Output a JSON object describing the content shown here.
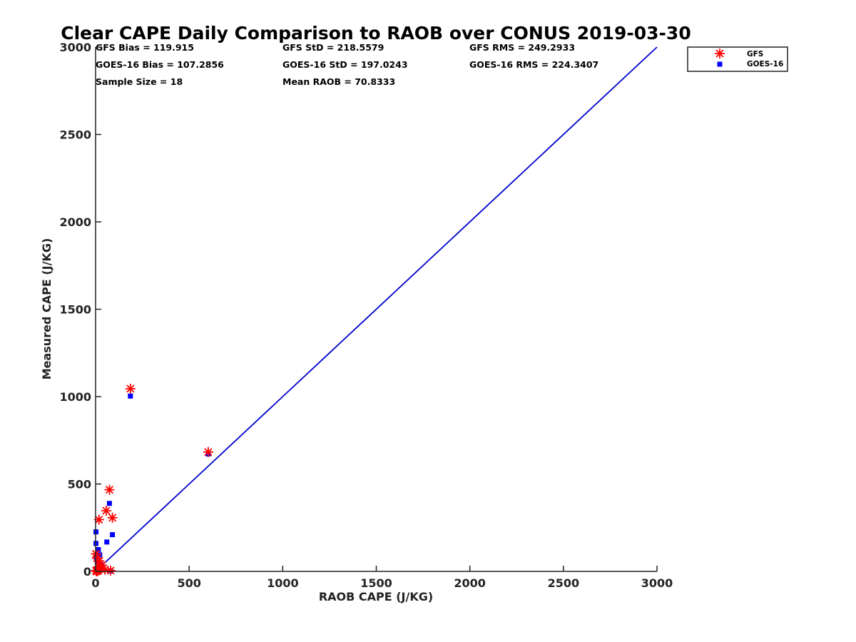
{
  "chart_data": {
    "type": "scatter",
    "title": "Clear CAPE Daily Comparison to RAOB over CONUS 2019-03-30",
    "xlabel": "RAOB CAPE (J/KG)",
    "ylabel": "Measured CAPE (J/KG)",
    "xlim": [
      0,
      3000
    ],
    "ylim": [
      0,
      3000
    ],
    "xticks": [
      "0",
      "500",
      "1000",
      "1500",
      "2000",
      "2500",
      "3000"
    ],
    "yticks": [
      "0",
      "500",
      "1000",
      "1500",
      "2000",
      "2500",
      "3000"
    ],
    "grid": false,
    "legend_position": "outside-top-right",
    "stats": [
      [
        "GFS Bias = 119.915",
        "GFS StD = 218.5579",
        "GFS RMS = 249.2933"
      ],
      [
        "GOES-16 Bias = 107.2856",
        "GOES-16 StD = 197.0243",
        "GOES-16 RMS = 224.3407"
      ],
      [
        "Sample Size = 18",
        "Mean RAOB = 70.8333"
      ]
    ],
    "reference_line": {
      "x": [
        0,
        3000
      ],
      "y": [
        0,
        3000
      ],
      "color": "#0000cc"
    },
    "series": [
      {
        "name": "GFS",
        "marker": "asterisk",
        "color": "#ff0000",
        "x": [
          186,
          602,
          74,
          57,
          90,
          18,
          2,
          8,
          20,
          35,
          15,
          28,
          50,
          80,
          3,
          12,
          10,
          5
        ],
        "y": [
          1045,
          683,
          467,
          347,
          307,
          296,
          100,
          75,
          60,
          35,
          25,
          15,
          10,
          5,
          5,
          3,
          2,
          0
        ]
      },
      {
        "name": "GOES-16",
        "marker": "square",
        "color": "#0000ff",
        "x": [
          186,
          602,
          74,
          60,
          90,
          2,
          2,
          15,
          22,
          5,
          10,
          28,
          15,
          30,
          3,
          8,
          80,
          12
        ],
        "y": [
          1003,
          672,
          389,
          168,
          210,
          226,
          160,
          125,
          95,
          75,
          55,
          40,
          25,
          15,
          10,
          5,
          3,
          0
        ]
      }
    ]
  }
}
